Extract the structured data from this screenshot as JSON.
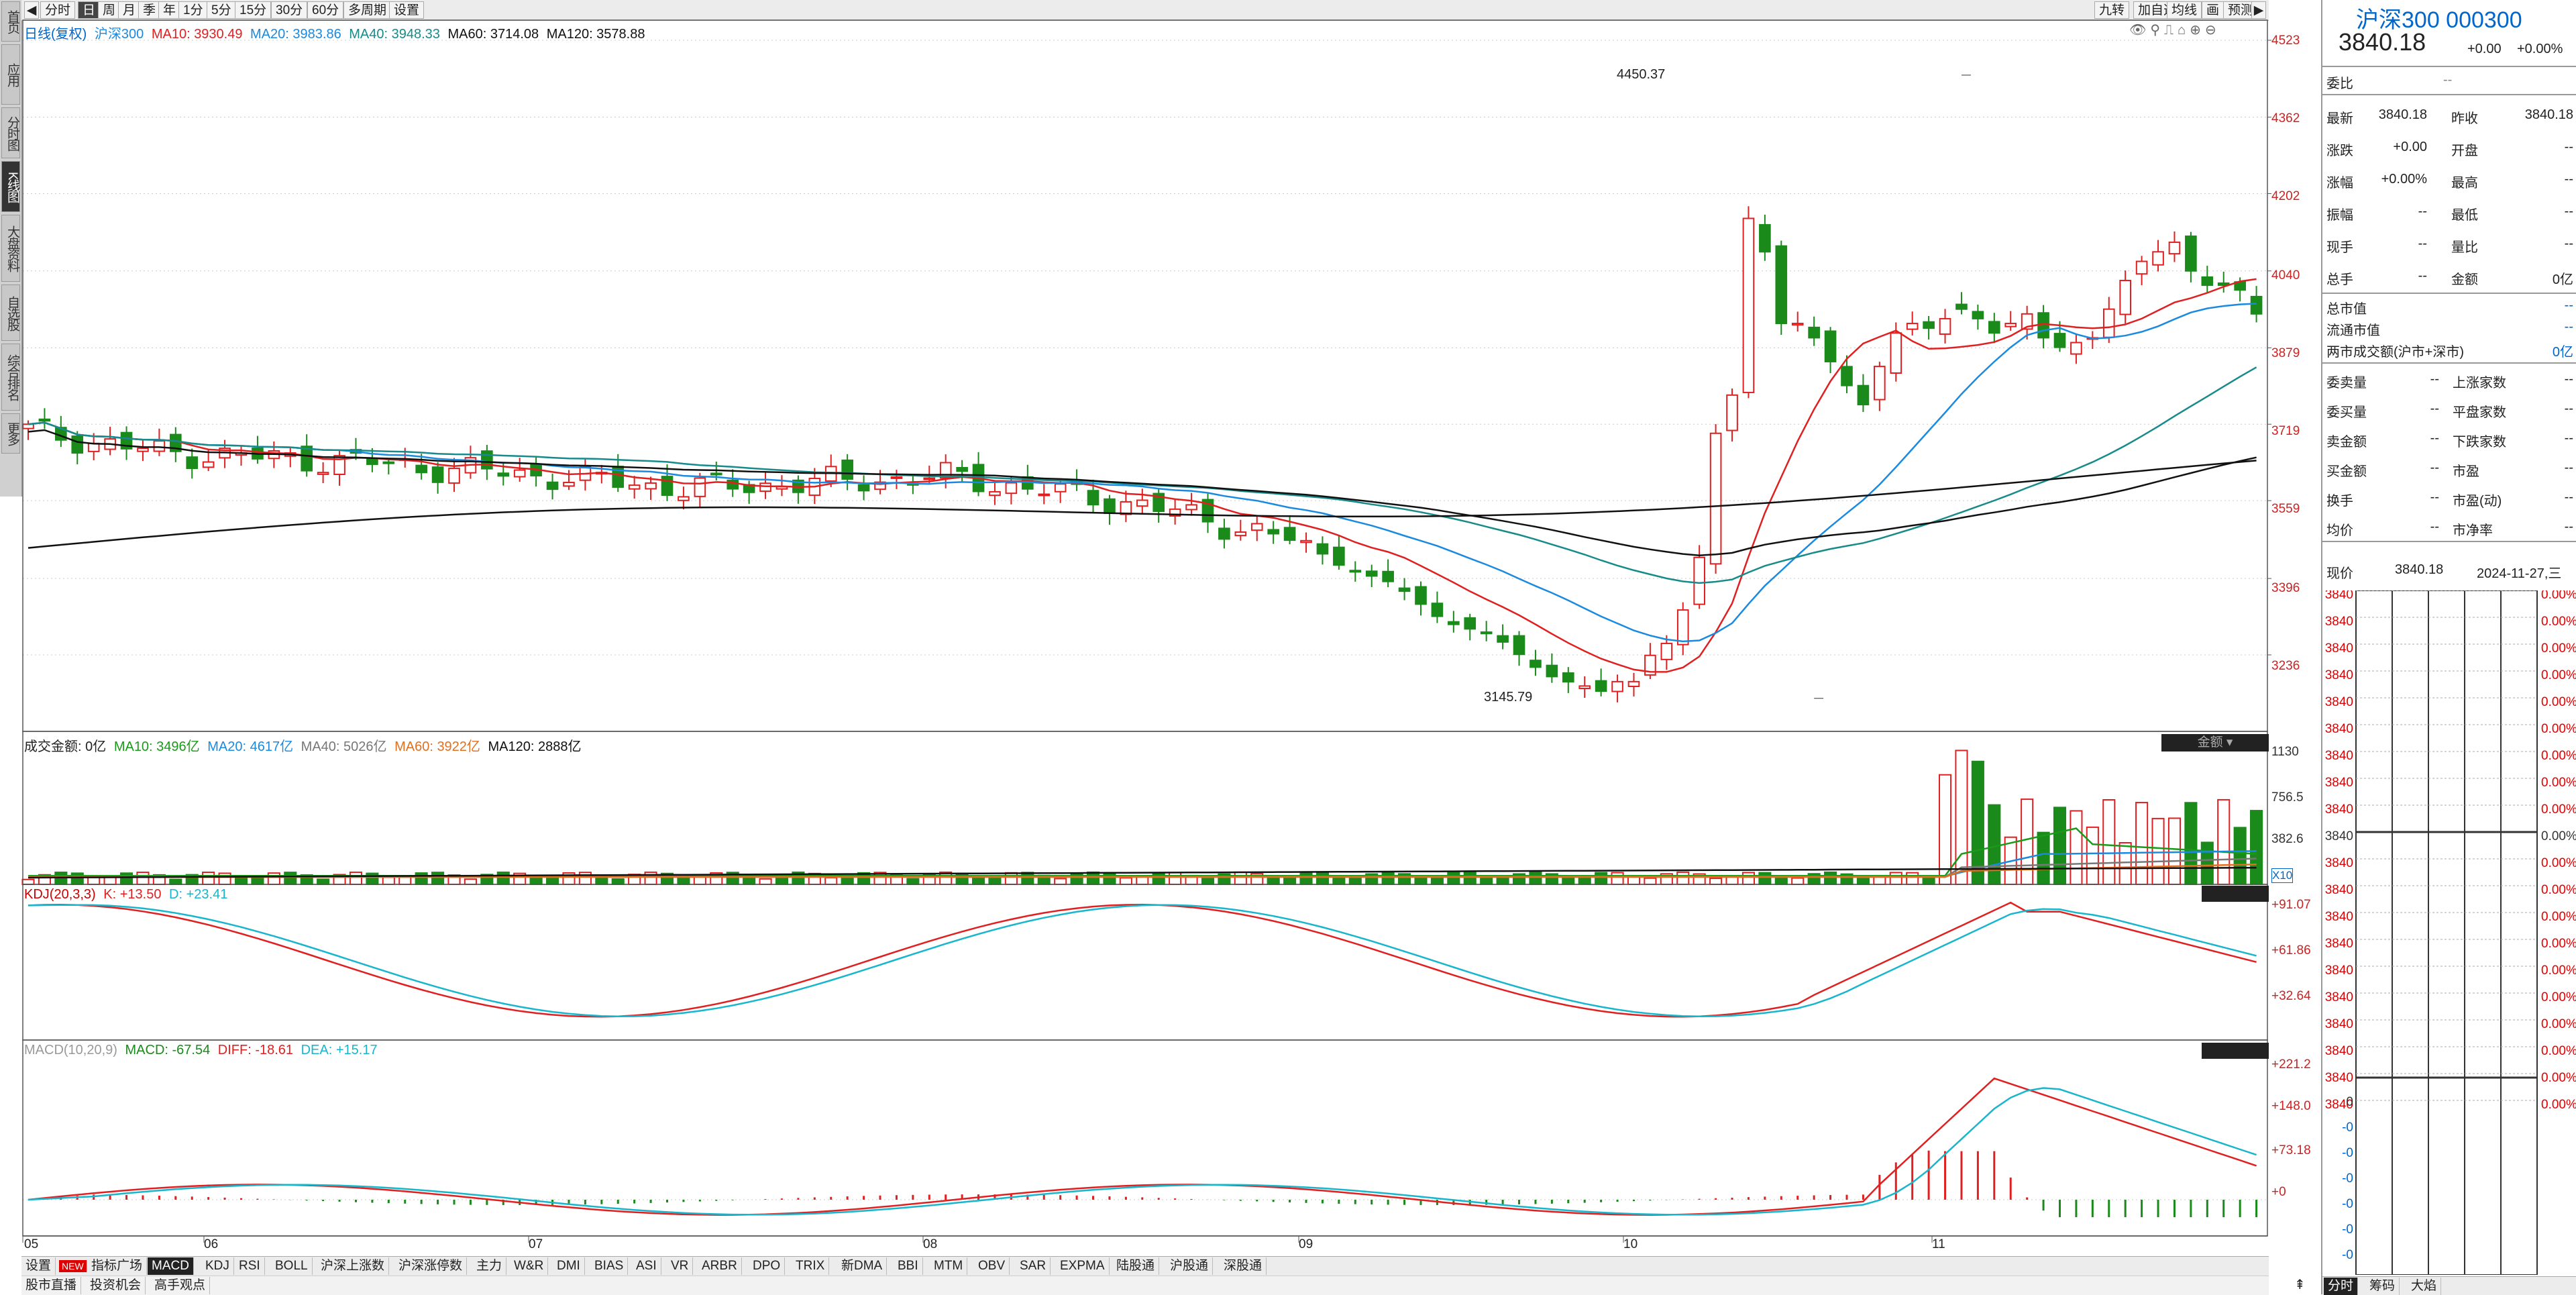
{
  "left_nav": [
    "首页",
    "应用",
    "分时图",
    "K线图",
    "大盘资料",
    "自选股",
    "综合排名",
    "更多"
  ],
  "toolbar": {
    "items": [
      "分时",
      "日",
      "周",
      "月",
      "季",
      "年",
      "1分",
      "5分",
      "15分",
      "30分",
      "60分",
      "多周期",
      "设置"
    ],
    "active": "日",
    "right_items": [
      "九转",
      "加自选",
      "均线",
      "画",
      "预测"
    ]
  },
  "main_legend": {
    "period": "日线(复权)",
    "name": "沪深300",
    "ma10": "MA10: 3930.49",
    "ma20": "MA20: 3983.86",
    "ma40": "MA40: 3948.33",
    "ma60": "MA60: 3714.08",
    "ma120": "MA120: 3578.88"
  },
  "price_axis": [
    "4523",
    "4362",
    "4202",
    "4040",
    "3879",
    "3719",
    "3559",
    "3396",
    "3236"
  ],
  "annotations": {
    "high": "4450.37",
    "low": "3145.79"
  },
  "volume_legend": {
    "label": "成交金额: 0亿",
    "ma10": "MA10: 3496亿",
    "ma20": "MA20: 4617亿",
    "ma40": "MA40: 5026亿",
    "ma60": "MA60: 3922亿",
    "ma120": "MA120: 2888亿",
    "button": "金额",
    "axis": [
      "1130",
      "756.5",
      "382.6"
    ],
    "unit": "X10"
  },
  "kdj_legend": {
    "label": "KDJ(20,3,3)",
    "k": "K: +13.50",
    "d": "D: +23.41",
    "axis": [
      "+91.07",
      "+61.86",
      "+32.64"
    ]
  },
  "macd_legend": {
    "label": "MACD(10,20,9)",
    "macd": "MACD: -67.54",
    "diff": "DIFF: -18.61",
    "dea": "DEA: +15.17",
    "axis": [
      "+221.2",
      "+148.0",
      "+73.18",
      "+0"
    ]
  },
  "date_axis": [
    "05",
    "06",
    "07",
    "08",
    "09",
    "10",
    "11"
  ],
  "bottom_tabs": {
    "items": [
      "设置",
      "NEW",
      "指标广场",
      "MACD",
      "KDJ",
      "RSI",
      "BOLL",
      "沪深上涨数",
      "沪深涨停数",
      "主力",
      "W&R",
      "DMI",
      "BIAS",
      "ASI",
      "VR",
      "ARBR",
      "DPO",
      "TRIX",
      "新DMA",
      "BBI",
      "MTM",
      "OBV",
      "SAR",
      "EXPMA",
      "陆股通",
      "沪股通",
      "深股通"
    ],
    "active": "MACD"
  },
  "bottom_bar2": [
    "股市直播",
    "投资机会",
    "高手观点"
  ],
  "right_panel": {
    "title": "沪深300 000300",
    "price": "3840.18",
    "change": "+0.00",
    "change_pct": "+0.00%",
    "weibi_label": "委比",
    "weibi_value": "--",
    "rows": [
      {
        "l1": "最新",
        "v1": "3840.18",
        "l2": "昨收",
        "v2": "3840.18"
      },
      {
        "l1": "涨跌",
        "v1": "+0.00",
        "l2": "开盘",
        "v2": "--"
      },
      {
        "l1": "涨幅",
        "v1": "+0.00%",
        "l2": "最高",
        "v2": "--"
      },
      {
        "l1": "振幅",
        "v1": "--",
        "l2": "最低",
        "v2": "--"
      },
      {
        "l1": "现手",
        "v1": "--",
        "l2": "量比",
        "v2": "--"
      },
      {
        "l1": "总手",
        "v1": "--",
        "l2": "金额",
        "v2": "0亿"
      }
    ],
    "single_rows": [
      {
        "l": "总市值",
        "v": "--"
      },
      {
        "l": "流通市值",
        "v": "--"
      },
      {
        "l": "两市成交额(沪市+深市)",
        "v": "0亿"
      }
    ],
    "rows2": [
      {
        "l1": "委卖量",
        "v1": "--",
        "l2": "上涨家数",
        "v2": "--"
      },
      {
        "l1": "委买量",
        "v1": "--",
        "l2": "平盘家数",
        "v2": "--"
      },
      {
        "l1": "卖金额",
        "v1": "--",
        "l2": "下跌家数",
        "v2": "--"
      },
      {
        "l1": "买金额",
        "v1": "--",
        "l2": "市盈",
        "v2": "--"
      },
      {
        "l1": "换手",
        "v1": "--",
        "l2": "市盈(动)",
        "v2": "--"
      },
      {
        "l1": "均价",
        "v1": "--",
        "l2": "市净率",
        "v2": "--"
      }
    ],
    "now_label": "现价",
    "now_price": "3840.18",
    "now_date": "2024-11-27,三",
    "mini_left": "3840",
    "mini_right": "0.00%",
    "mini_zero": "0",
    "mini_zero_neg": "-0",
    "bottom_tabs": [
      "分时",
      "筹码",
      "大焰"
    ]
  },
  "colors": {
    "up": "#e02020",
    "down": "#1a8a1a",
    "ma10": "#e02020",
    "ma20": "#1a8ae0",
    "ma40": "#178a8a",
    "ma60": "#111111",
    "ma120": "#111111"
  }
}
